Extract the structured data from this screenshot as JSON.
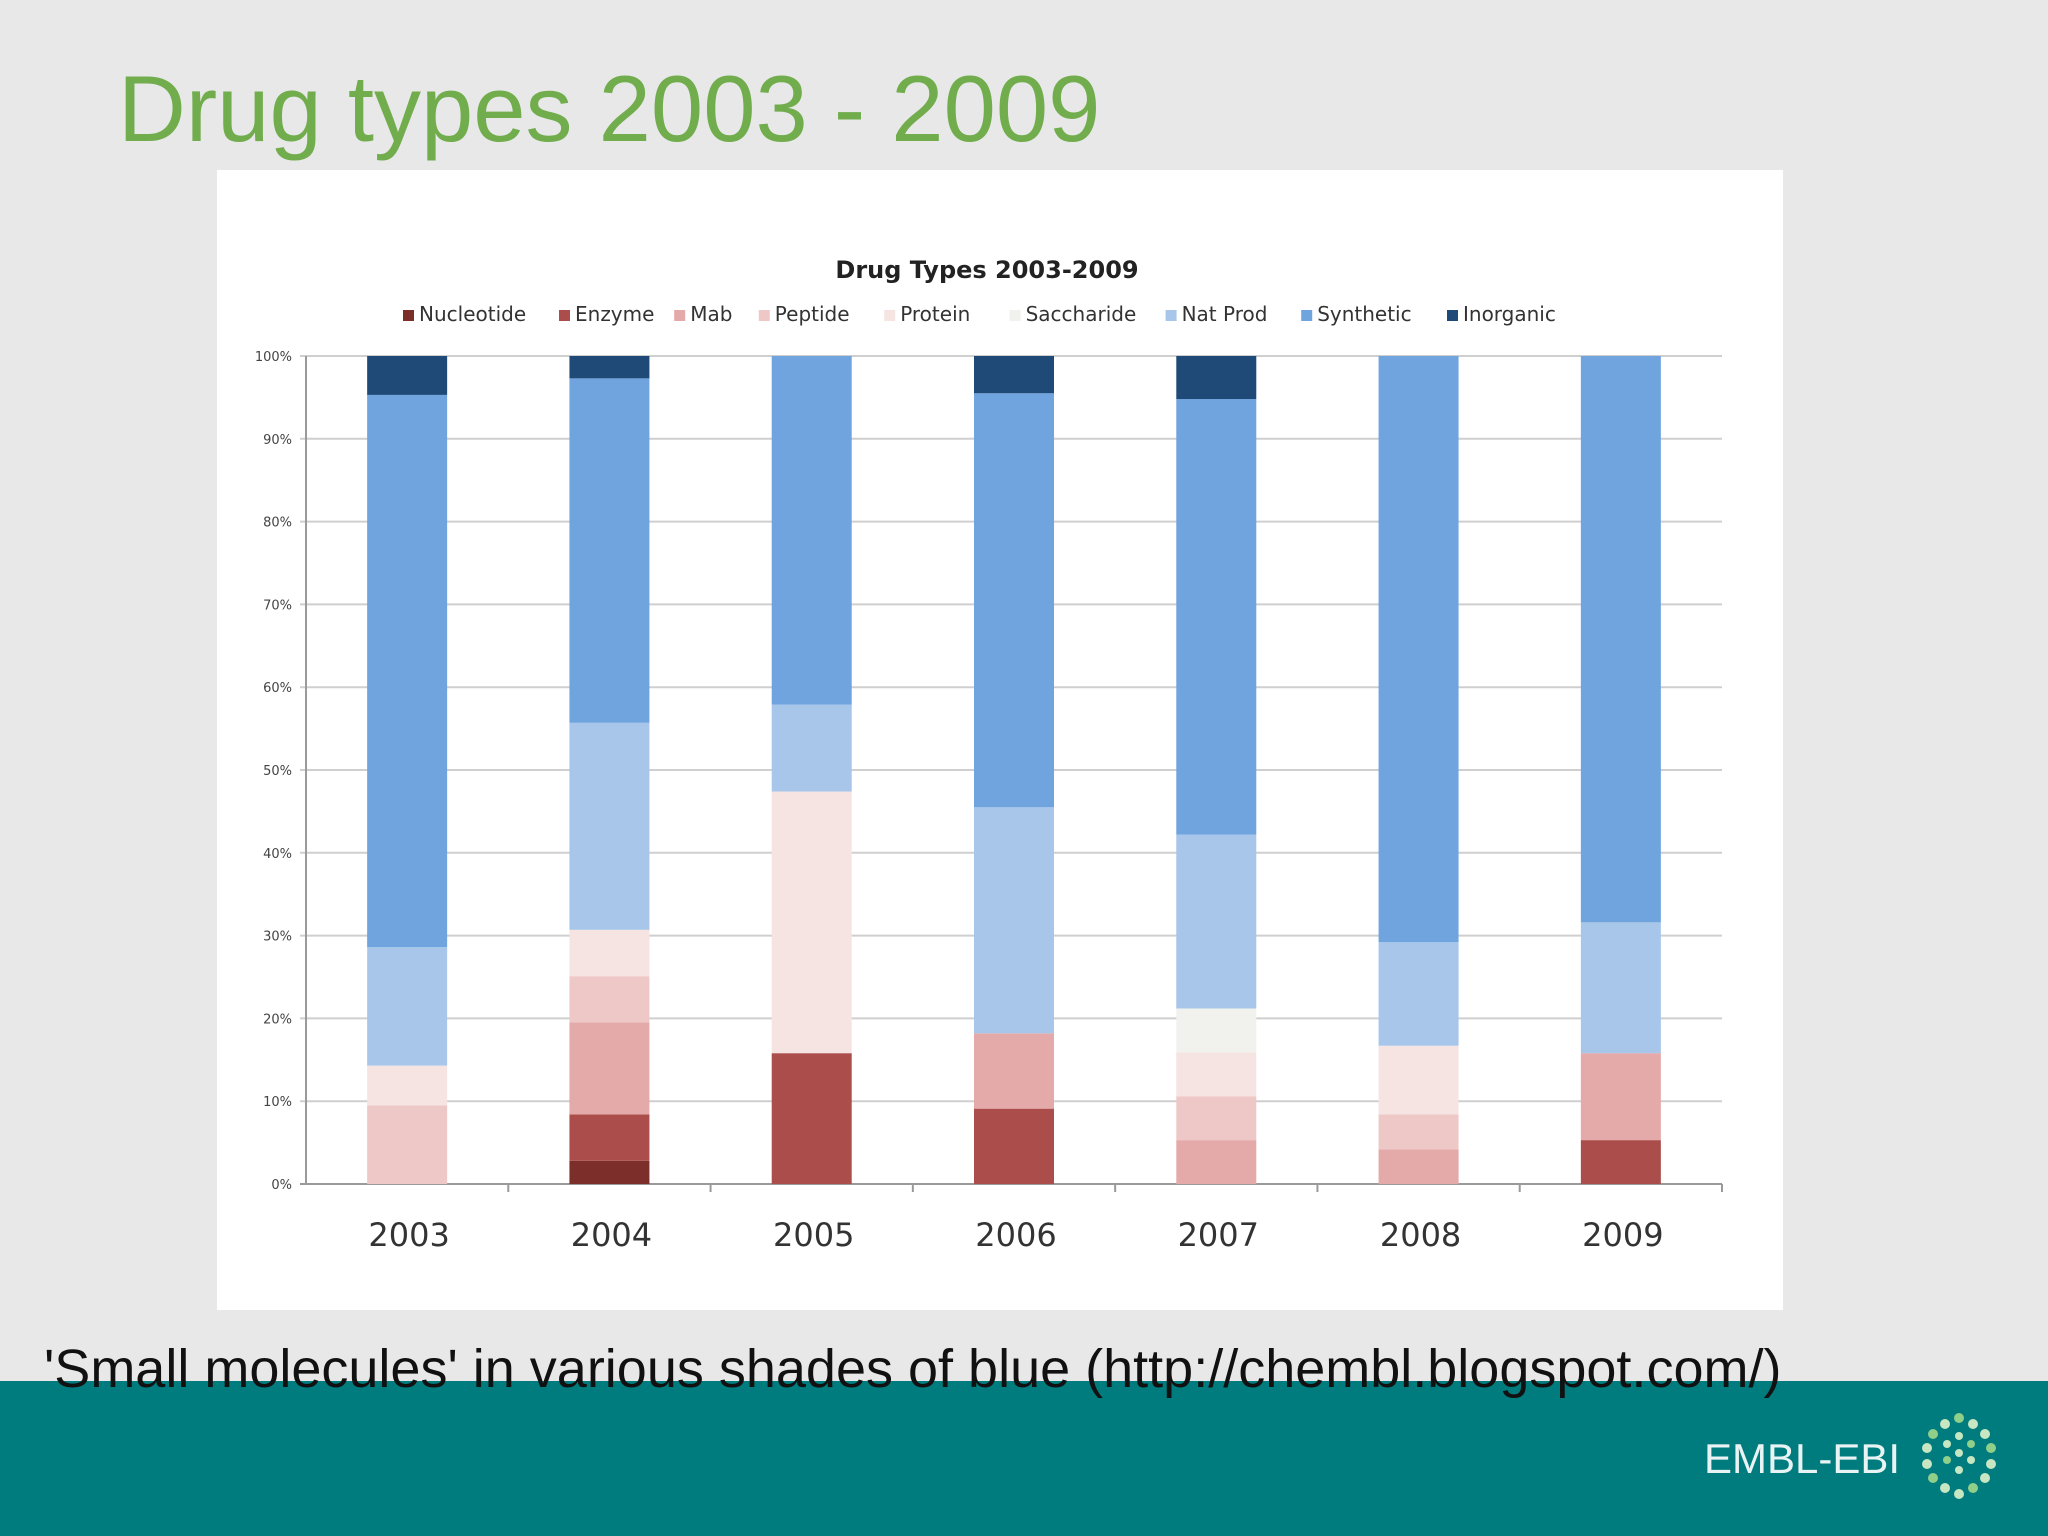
{
  "slide": {
    "title": "Drug types 2003 - 2009",
    "caption": "'Small molecules' in various shades of blue (http://chembl.blogspot.com/)",
    "logo_text": "EMBL-EBI",
    "colors": {
      "title": "#71ad4c",
      "footer": "#007c7f",
      "background": "#e8e8e9"
    }
  },
  "chart_data": {
    "type": "bar",
    "stacked": true,
    "normalized": true,
    "title": "Drug Types 2003-2009",
    "xlabel": "",
    "ylabel": "",
    "ylim": [
      0,
      100
    ],
    "y_ticks": [
      "0%",
      "10%",
      "20%",
      "30%",
      "40%",
      "50%",
      "60%",
      "70%",
      "80%",
      "90%",
      "100%"
    ],
    "categories": [
      "2003",
      "2004",
      "2005",
      "2006",
      "2007",
      "2008",
      "2009"
    ],
    "legend_position": "top",
    "grid": true,
    "series": [
      {
        "name": "Nucleotide",
        "color": "#7b2e2a",
        "values": [
          0,
          2.8,
          0,
          0,
          0,
          0,
          0
        ]
      },
      {
        "name": "Enzyme",
        "color": "#ab4e4b",
        "values": [
          0,
          5.6,
          15.8,
          9.1,
          0,
          0,
          5.3
        ]
      },
      {
        "name": "Mab",
        "color": "#e4aaa9",
        "values": [
          0,
          11.1,
          0,
          9.1,
          5.3,
          4.2,
          10.5
        ]
      },
      {
        "name": "Peptide",
        "color": "#edc8c7",
        "values": [
          9.5,
          5.6,
          0,
          0,
          5.3,
          4.2,
          0
        ]
      },
      {
        "name": "Protein",
        "color": "#f6e4e3",
        "values": [
          4.8,
          5.6,
          31.6,
          0,
          5.3,
          8.3,
          0
        ]
      },
      {
        "name": "Saccharide",
        "color": "#f1f1ee",
        "values": [
          0,
          0,
          0,
          0,
          5.3,
          0,
          0
        ]
      },
      {
        "name": "Nat Prod",
        "color": "#a7c6ea",
        "values": [
          14.3,
          25.0,
          10.5,
          27.3,
          21.0,
          12.5,
          15.8
        ]
      },
      {
        "name": "Synthetic",
        "color": "#6fa4df",
        "values": [
          66.7,
          41.6,
          42.1,
          50.0,
          52.6,
          70.8,
          68.4
        ]
      },
      {
        "name": "Inorganic",
        "color": "#1f4a78",
        "values": [
          4.7,
          2.7,
          0,
          4.5,
          5.2,
          0,
          0
        ]
      }
    ]
  }
}
